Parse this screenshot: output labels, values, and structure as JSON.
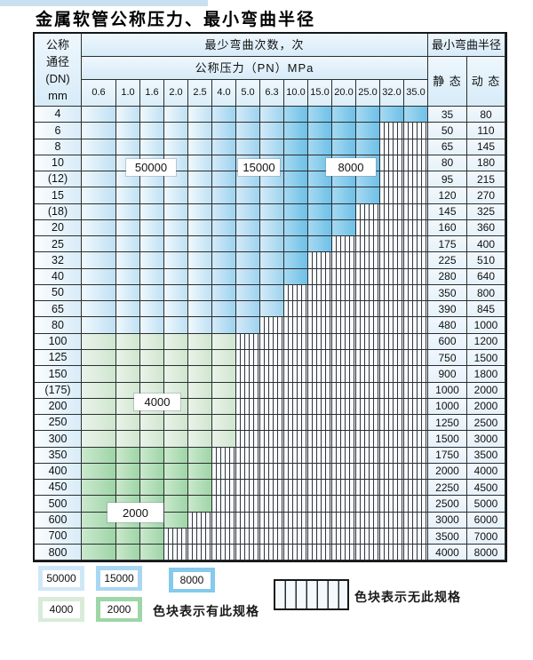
{
  "page": {
    "title": "金属软管公称压力、最小弯曲半径"
  },
  "table": {
    "corner_header": "公称\n通径\n(DN)\nmm",
    "cycles_header": "最少弯曲次数，次",
    "pressure_header": "公称压力（PN）MPa",
    "radius_header": "最小弯曲半径",
    "static_header": "静 态",
    "dynamic_header": "动 态",
    "pressure_ticks": [
      "0.6",
      "1.0",
      "1.6",
      "2.0",
      "2.5",
      "4.0",
      "5.0",
      "6.3",
      "10.0",
      "15.0",
      "20.0",
      "25.0",
      "32.0",
      "35.0"
    ],
    "band_legend_key": {
      "b1": "50000",
      "b2": "15000",
      "b3": "8000",
      "g1": "4000",
      "g2": "2000",
      "h": "no-spec"
    },
    "rows": [
      {
        "dn": "4",
        "bands": [
          [
            "b1",
            5
          ],
          [
            "b2",
            3
          ],
          [
            "b3",
            6
          ]
        ],
        "static": "35",
        "dynamic": "80"
      },
      {
        "dn": "6",
        "bands": [
          [
            "b1",
            5
          ],
          [
            "b2",
            3
          ],
          [
            "b3",
            4
          ],
          [
            "h",
            2
          ]
        ],
        "static": "50",
        "dynamic": "110"
      },
      {
        "dn": "8",
        "bands": [
          [
            "b1",
            5
          ],
          [
            "b2",
            3
          ],
          [
            "b3",
            4
          ],
          [
            "h",
            2
          ]
        ],
        "static": "65",
        "dynamic": "145"
      },
      {
        "dn": "10",
        "bands": [
          [
            "b1",
            5
          ],
          [
            "b2",
            3
          ],
          [
            "b3",
            4
          ],
          [
            "h",
            2
          ]
        ],
        "static": "80",
        "dynamic": "180"
      },
      {
        "dn": "(12)",
        "bands": [
          [
            "b1",
            5
          ],
          [
            "b2",
            3
          ],
          [
            "b3",
            4
          ],
          [
            "h",
            2
          ]
        ],
        "static": "95",
        "dynamic": "215"
      },
      {
        "dn": "15",
        "bands": [
          [
            "b1",
            5
          ],
          [
            "b2",
            3
          ],
          [
            "b3",
            4
          ],
          [
            "h",
            2
          ]
        ],
        "static": "120",
        "dynamic": "270"
      },
      {
        "dn": "(18)",
        "bands": [
          [
            "b1",
            5
          ],
          [
            "b2",
            3
          ],
          [
            "b3",
            3
          ],
          [
            "h",
            3
          ]
        ],
        "static": "145",
        "dynamic": "325"
      },
      {
        "dn": "20",
        "bands": [
          [
            "b1",
            5
          ],
          [
            "b2",
            3
          ],
          [
            "b3",
            3
          ],
          [
            "h",
            3
          ]
        ],
        "static": "160",
        "dynamic": "360"
      },
      {
        "dn": "25",
        "bands": [
          [
            "b1",
            5
          ],
          [
            "b2",
            3
          ],
          [
            "b3",
            2
          ],
          [
            "h",
            4
          ]
        ],
        "static": "175",
        "dynamic": "400"
      },
      {
        "dn": "32",
        "bands": [
          [
            "b1",
            5
          ],
          [
            "b2",
            3
          ],
          [
            "b3",
            1
          ],
          [
            "h",
            5
          ]
        ],
        "static": "225",
        "dynamic": "510"
      },
      {
        "dn": "40",
        "bands": [
          [
            "b1",
            5
          ],
          [
            "b2",
            3
          ],
          [
            "b3",
            1
          ],
          [
            "h",
            5
          ]
        ],
        "static": "280",
        "dynamic": "640"
      },
      {
        "dn": "50",
        "bands": [
          [
            "b1",
            5
          ],
          [
            "b2",
            3
          ],
          [
            "h",
            6
          ]
        ],
        "static": "350",
        "dynamic": "800"
      },
      {
        "dn": "65",
        "bands": [
          [
            "b1",
            5
          ],
          [
            "b2",
            3
          ],
          [
            "h",
            6
          ]
        ],
        "static": "390",
        "dynamic": "845"
      },
      {
        "dn": "80",
        "bands": [
          [
            "b1",
            5
          ],
          [
            "b2",
            2
          ],
          [
            "h",
            7
          ]
        ],
        "static": "480",
        "dynamic": "1000"
      },
      {
        "dn": "100",
        "bands": [
          [
            "g1",
            6
          ],
          [
            "h",
            8
          ]
        ],
        "static": "600",
        "dynamic": "1200"
      },
      {
        "dn": "125",
        "bands": [
          [
            "g1",
            6
          ],
          [
            "h",
            8
          ]
        ],
        "static": "750",
        "dynamic": "1500"
      },
      {
        "dn": "150",
        "bands": [
          [
            "g1",
            6
          ],
          [
            "h",
            8
          ]
        ],
        "static": "900",
        "dynamic": "1800"
      },
      {
        "dn": "(175)",
        "bands": [
          [
            "g1",
            6
          ],
          [
            "h",
            8
          ]
        ],
        "static": "1000",
        "dynamic": "2000"
      },
      {
        "dn": "200",
        "bands": [
          [
            "g1",
            6
          ],
          [
            "h",
            8
          ]
        ],
        "static": "1000",
        "dynamic": "2000"
      },
      {
        "dn": "250",
        "bands": [
          [
            "g1",
            6
          ],
          [
            "h",
            8
          ]
        ],
        "static": "1250",
        "dynamic": "2500"
      },
      {
        "dn": "300",
        "bands": [
          [
            "g1",
            6
          ],
          [
            "h",
            8
          ]
        ],
        "static": "1500",
        "dynamic": "3000"
      },
      {
        "dn": "350",
        "bands": [
          [
            "g2",
            5
          ],
          [
            "h",
            9
          ]
        ],
        "static": "1750",
        "dynamic": "3500"
      },
      {
        "dn": "400",
        "bands": [
          [
            "g2",
            5
          ],
          [
            "h",
            9
          ]
        ],
        "static": "2000",
        "dynamic": "4000"
      },
      {
        "dn": "450",
        "bands": [
          [
            "g2",
            5
          ],
          [
            "h",
            9
          ]
        ],
        "static": "2250",
        "dynamic": "4500"
      },
      {
        "dn": "500",
        "bands": [
          [
            "g2",
            5
          ],
          [
            "h",
            9
          ]
        ],
        "static": "2500",
        "dynamic": "5000"
      },
      {
        "dn": "600",
        "bands": [
          [
            "g2",
            4
          ],
          [
            "h",
            10
          ]
        ],
        "static": "3000",
        "dynamic": "6000"
      },
      {
        "dn": "700",
        "bands": [
          [
            "g2",
            3
          ],
          [
            "h",
            11
          ]
        ],
        "static": "3500",
        "dynamic": "7000"
      },
      {
        "dn": "800",
        "bands": [
          [
            "g2",
            3
          ],
          [
            "h",
            11
          ]
        ],
        "static": "4000",
        "dynamic": "8000"
      }
    ]
  },
  "overlay_labels": {
    "cycles_50000": "50000",
    "cycles_15000": "15000",
    "cycles_8000": "8000",
    "cycles_4000": "4000",
    "cycles_2000": "2000"
  },
  "legend": {
    "blocks": [
      {
        "label": "50000",
        "color": "#cfe8f8"
      },
      {
        "label": "15000",
        "color": "#a9d7f1"
      },
      {
        "label": "8000",
        "color": "#85c9ec"
      },
      {
        "label": "4000",
        "color": "#d8ecd9"
      },
      {
        "label": "2000",
        "color": "#9fd6a8"
      }
    ],
    "has_spec_note": "色块表示有此规格",
    "no_spec_note": "色块表示无此规格"
  },
  "colors": {
    "band_50000": "#bfe1f4",
    "band_15000": "#9ed3ef",
    "band_8000": "#6ec0e8",
    "band_4000": "#cfe6cf",
    "band_2000": "#9ed5a7",
    "header_bg": "#d7ebf8",
    "grid_line": "#2b2e30"
  }
}
